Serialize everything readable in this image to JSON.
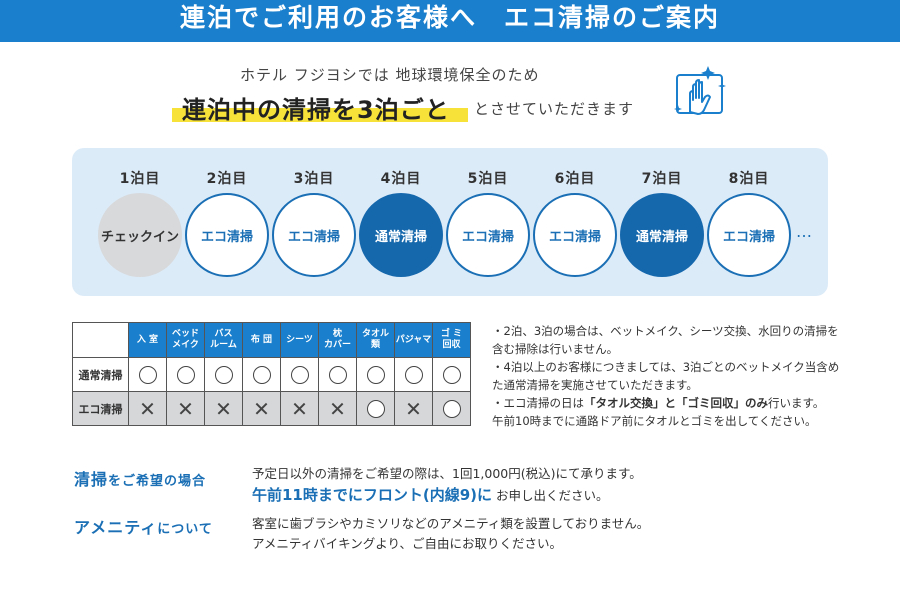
{
  "header": {
    "title": "連泊でご利用のお客様へ　エコ清掃のご案内"
  },
  "intro": {
    "line1": "ホテル フジヨシでは 地球環境保全のため",
    "highlight": "連泊中の清掃を3泊ごと",
    "tail": "とさせていただきます"
  },
  "icons": {
    "cleaning": "cleaning-hand-sparkle-icon"
  },
  "schedule": {
    "nights": [
      {
        "label": "1泊目",
        "status": "チェックイン",
        "kind": "checkin"
      },
      {
        "label": "2泊目",
        "status": "エコ清掃",
        "kind": "eco"
      },
      {
        "label": "3泊目",
        "status": "エコ清掃",
        "kind": "eco"
      },
      {
        "label": "4泊目",
        "status": "通常清掃",
        "kind": "normal"
      },
      {
        "label": "5泊目",
        "status": "エコ清掃",
        "kind": "eco"
      },
      {
        "label": "6泊目",
        "status": "エコ清掃",
        "kind": "eco"
      },
      {
        "label": "7泊目",
        "status": "通常清掃",
        "kind": "normal"
      },
      {
        "label": "8泊目",
        "status": "エコ清掃",
        "kind": "eco"
      }
    ],
    "more": "…"
  },
  "table": {
    "columns": [
      {
        "l1": "入 室",
        "l2": ""
      },
      {
        "l1": "ベッド",
        "l2": "メイク"
      },
      {
        "l1": "バス",
        "l2": "ルーム"
      },
      {
        "l1": "布 団",
        "l2": ""
      },
      {
        "l1": "シーツ",
        "l2": ""
      },
      {
        "l1": "枕",
        "l2": "カバー"
      },
      {
        "l1": "タオル",
        "l2": "類"
      },
      {
        "l1": "パジャマ",
        "l2": ""
      },
      {
        "l1": "ゴ ミ",
        "l2": "回収"
      }
    ],
    "rows": [
      {
        "label": "通常清掃",
        "kind": "normal",
        "marks": [
          "○",
          "○",
          "○",
          "○",
          "○",
          "○",
          "○",
          "○",
          "○"
        ]
      },
      {
        "label": "エコ清掃",
        "kind": "eco",
        "marks": [
          "×",
          "×",
          "×",
          "×",
          "×",
          "×",
          "○",
          "×",
          "○"
        ]
      }
    ]
  },
  "notes": {
    "n1": "・2泊、3泊の場合は、ベットメイク、シーツ交換、水回りの清掃を含む掃除は行いません。",
    "n2": "・4泊以上のお客様につきましては、3泊ごとのベットメイク当含めた通常清掃を実施させていただきます。",
    "n3a": "・エコ清掃の日は",
    "n3b": "「タオル交換」と「ゴミ回収」のみ",
    "n3c": "行います。",
    "n3d": "午前10時までに通路ドア前にタオルとゴミを出してください。"
  },
  "request": {
    "head_a": "清掃",
    "head_b": "をご希望の場合",
    "body1": "予定日以外の清掃をご希望の際は、1回1,000円(税込)にて承ります。",
    "body2_blue": "午前11時までにフロント(内線9)に",
    "body2_tail": "お申し出ください。"
  },
  "amenity": {
    "head_a": "アメニティ",
    "head_b": "について",
    "body1": "客室に歯ブラシやカミソリなどのアメニティ類を設置しておりません。",
    "body2": "アメニティバイキングより、ご自由にお取りください。"
  },
  "colors": {
    "brand_blue": "#1a7fcc",
    "normal_fill": "#1668ad",
    "panel": "#dcebf8",
    "highlight": "#f7e23a"
  }
}
